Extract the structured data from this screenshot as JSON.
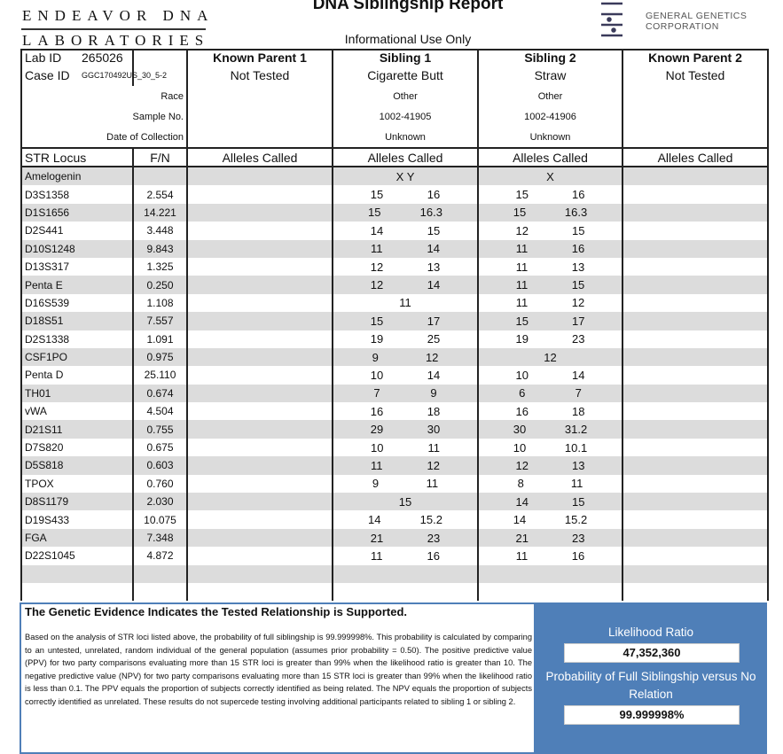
{
  "header": {
    "lab_line1": "ENDEAVOR DNA",
    "lab_line2": "LABORATORIES",
    "title": "DNA Siblingship Report",
    "subtitle": "Informational Use Only",
    "ggc_line1": "GENERAL GENETICS",
    "ggc_line2": "CORPORATION"
  },
  "info": {
    "lab_id_label": "Lab ID",
    "lab_id": "265026",
    "case_id_label": "Case ID",
    "case_id": "GGC170492US_30_5-2",
    "race_label": "Race",
    "sample_label": "Sample No.",
    "date_label": "Date of Collection",
    "parties": [
      {
        "name": "Known Parent 1",
        "sample": "Not Tested",
        "race": "",
        "sample_no": "",
        "date": ""
      },
      {
        "name": "Sibling 1",
        "sample": "Cigarette Butt",
        "race": "Other",
        "sample_no": "1002-41905",
        "date": "Unknown"
      },
      {
        "name": "Sibling 2",
        "sample": "Straw",
        "race": "Other",
        "sample_no": "1002-41906",
        "date": "Unknown"
      },
      {
        "name": "Known Parent 2",
        "sample": "Not Tested",
        "race": "",
        "sample_no": "",
        "date": ""
      }
    ]
  },
  "columns": {
    "locus": "STR Locus",
    "fn": "F/N",
    "alleles": "Alleles Called"
  },
  "loci": [
    [
      "Amelogenin",
      "",
      [
        "X Y"
      ],
      [
        "X"
      ]
    ],
    [
      "D3S1358",
      "2.554",
      [
        "15",
        "16"
      ],
      [
        "15",
        "16"
      ]
    ],
    [
      "D1S1656",
      "14.221",
      [
        "15",
        "16.3"
      ],
      [
        "15",
        "16.3"
      ]
    ],
    [
      "D2S441",
      "3.448",
      [
        "14",
        "15"
      ],
      [
        "12",
        "15"
      ]
    ],
    [
      "D10S1248",
      "9.843",
      [
        "11",
        "14"
      ],
      [
        "11",
        "16"
      ]
    ],
    [
      "D13S317",
      "1.325",
      [
        "12",
        "13"
      ],
      [
        "11",
        "13"
      ]
    ],
    [
      "Penta E",
      "0.250",
      [
        "12",
        "14"
      ],
      [
        "11",
        "15"
      ]
    ],
    [
      "D16S539",
      "1.108",
      [
        "11"
      ],
      [
        "11",
        "12"
      ]
    ],
    [
      "D18S51",
      "7.557",
      [
        "15",
        "17"
      ],
      [
        "15",
        "17"
      ]
    ],
    [
      "D2S1338",
      "1.091",
      [
        "19",
        "25"
      ],
      [
        "19",
        "23"
      ]
    ],
    [
      "CSF1PO",
      "0.975",
      [
        "9",
        "12"
      ],
      [
        "12"
      ]
    ],
    [
      "Penta D",
      "25.110",
      [
        "10",
        "14"
      ],
      [
        "10",
        "14"
      ]
    ],
    [
      "TH01",
      "0.674",
      [
        "7",
        "9"
      ],
      [
        "6",
        "7"
      ]
    ],
    [
      "vWA",
      "4.504",
      [
        "16",
        "18"
      ],
      [
        "16",
        "18"
      ]
    ],
    [
      "D21S11",
      "0.755",
      [
        "29",
        "30"
      ],
      [
        "30",
        "31.2"
      ]
    ],
    [
      "D7S820",
      "0.675",
      [
        "10",
        "11"
      ],
      [
        "10",
        "10.1"
      ]
    ],
    [
      "D5S818",
      "0.603",
      [
        "11",
        "12"
      ],
      [
        "12",
        "13"
      ]
    ],
    [
      "TPOX",
      "0.760",
      [
        "9",
        "11"
      ],
      [
        "8",
        "11"
      ]
    ],
    [
      "D8S1179",
      "2.030",
      [
        "15"
      ],
      [
        "14",
        "15"
      ]
    ],
    [
      "D19S433",
      "10.075",
      [
        "14",
        "15.2"
      ],
      [
        "14",
        "15.2"
      ]
    ],
    [
      "FGA",
      "7.348",
      [
        "21",
        "23"
      ],
      [
        "21",
        "23"
      ]
    ],
    [
      "D22S1045",
      "4.872",
      [
        "11",
        "16"
      ],
      [
        "11",
        "16"
      ]
    ]
  ],
  "conclusion": {
    "heading": "The Genetic Evidence Indicates the Tested Relationship is Supported.",
    "paragraph": "Based on the analysis of STR loci listed above, the probability of full siblingship is 99.999998%. This probability is calculated by comparing to an untested, unrelated, random individual of the general population (assumes prior probability = 0.50). The positive predictive value (PPV) for two party comparisons evaluating more than 15 STR loci is greater than 99% when the likelihood ratio is greater than 10. The negative predictive value (NPV) for two party comparisons evaluating more than 15 STR loci is greater than 99% when the likelihood ratio is less than 0.1. The PPV equals the proportion of subjects correctly identified as being related. The NPV equals the proportion of subjects correctly identified as unrelated. These results do not supercede testing involving additional participants related to sibling 1 or sibling 2.",
    "lr_label": "Likelihood Ratio",
    "lr_value": "47,352,360",
    "prob_label": "Probability of Full Siblingship versus No Relation",
    "prob_value": "99.999998%"
  },
  "colors": {
    "panel": "#4f7fb8",
    "row_shade": "#dcdcdc"
  }
}
